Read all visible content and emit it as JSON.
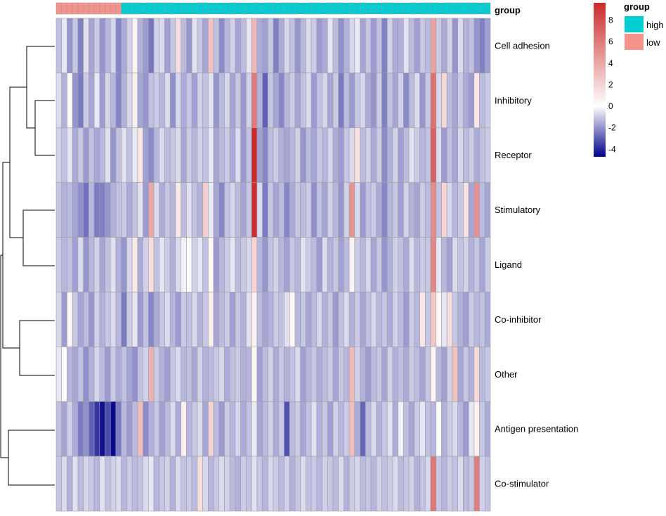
{
  "chart_data": {
    "type": "heatmap",
    "annotation_title": "group",
    "legend": {
      "title": "group",
      "items": [
        {
          "label": "high",
          "color": "#00CED1"
        },
        {
          "label": "low",
          "color": "#F4928C"
        }
      ]
    },
    "color_scale": {
      "low_color": "#00008B",
      "mid_color": "#FFFFFF",
      "high_color": "#CC2A2A",
      "min": -4.7,
      "max": 9.6,
      "ticks": [
        8,
        6,
        4,
        2,
        0,
        -2,
        -4
      ]
    },
    "rows": [
      "Cell adhesion",
      "Inhibitory",
      "Receptor",
      "Stimulatory",
      "Ligand",
      "Co-inhibitor",
      "Other",
      "Antigen presentation",
      "Co-stimulator"
    ],
    "n_columns": 80,
    "column_groups": [
      "low",
      "low",
      "low",
      "low",
      "low",
      "low",
      "low",
      "low",
      "low",
      "low",
      "low",
      "low",
      "high",
      "high",
      "high",
      "high",
      "high",
      "high",
      "high",
      "high",
      "high",
      "high",
      "high",
      "high",
      "high",
      "high",
      "high",
      "high",
      "high",
      "high",
      "high",
      "high",
      "high",
      "high",
      "high",
      "high",
      "high",
      "high",
      "high",
      "high",
      "high",
      "high",
      "high",
      "high",
      "high",
      "high",
      "high",
      "high",
      "high",
      "high",
      "high",
      "high",
      "high",
      "high",
      "high",
      "high",
      "high",
      "high",
      "high",
      "high",
      "high",
      "high",
      "high",
      "high",
      "high",
      "high",
      "high",
      "high",
      "high",
      "high",
      "high",
      "high",
      "high",
      "high",
      "high",
      "high",
      "high",
      "high",
      "high",
      "high"
    ],
    "values": [
      [
        -1.1,
        -0.4,
        -1.9,
        -1.0,
        -2.3,
        -0.5,
        -1.6,
        -0.9,
        -1.9,
        -1.3,
        -0.7,
        -2.2,
        -1.5,
        -0.8,
        0.6,
        -1.4,
        -1.8,
        -2.5,
        -0.8,
        -0.6,
        -1.7,
        -1.0,
        1.5,
        -1.2,
        -1.9,
        -0.5,
        -1.0,
        -1.6,
        2.8,
        -1.1,
        -2.1,
        -1.3,
        -0.8,
        -1.6,
        -1.2,
        -0.4,
        3.3,
        -1.5,
        -1.7,
        -1.0,
        -2.3,
        -1.5,
        -0.7,
        -1.1,
        -1.9,
        -1.3,
        -0.6,
        -0.9,
        -1.8,
        -1.5,
        -0.4,
        -1.2,
        -2.0,
        -1.4,
        -0.7,
        -0.3,
        -1.6,
        -1.0,
        -1.8,
        -1.1,
        -2.3,
        -0.8,
        -1.5,
        -1.4,
        -0.5,
        -1.2,
        -1.7,
        -1.0,
        -1.2,
        4.2,
        -0.9,
        -1.5,
        -0.8,
        -1.9,
        -0.6,
        -1.4,
        -1.1,
        -1.9,
        -2.3,
        -1.7
      ],
      [
        -0.6,
        -1.4,
        0.2,
        -1.9,
        -2.4,
        -0.9,
        -1.6,
        -0.4,
        -1.8,
        -0.7,
        -1.3,
        -2.2,
        -1.4,
        -0.7,
        0.8,
        -1.6,
        -1.9,
        -1.1,
        -0.9,
        -1.3,
        -0.6,
        -2.0,
        -0.7,
        -1.5,
        -1.0,
        -1.7,
        -0.8,
        -1.1,
        -0.5,
        -1.9,
        -1.2,
        -0.7,
        -1.6,
        -1.0,
        -1.8,
        -0.8,
        6.0,
        -1.4,
        -2.9,
        -1.0,
        -1.6,
        -2.2,
        -1.3,
        -0.9,
        -1.6,
        -1.1,
        -0.6,
        -1.8,
        -1.1,
        -0.7,
        -1.6,
        -0.9,
        -2.4,
        -1.2,
        -1.8,
        -1.0,
        -0.7,
        -1.5,
        -1.9,
        -0.9,
        -2.3,
        -1.1,
        -1.6,
        -0.8,
        -2.1,
        -1.2,
        -0.6,
        -1.9,
        -1.0,
        6.5,
        -0.7,
        1.8,
        -1.2,
        -1.6,
        -0.9,
        -1.5,
        -1.8,
        1.2,
        -1.2,
        -0.9
      ],
      [
        -0.8,
        -1.1,
        -0.4,
        -1.5,
        -1.0,
        -1.8,
        -1.1,
        -1.6,
        -1.3,
        -0.5,
        -1.9,
        -1.1,
        -0.5,
        -1.1,
        -0.3,
        1.2,
        -1.7,
        -2.1,
        -1.3,
        -0.6,
        -1.2,
        -1.0,
        -0.6,
        -1.6,
        -0.9,
        -1.3,
        -0.8,
        -1.1,
        -0.4,
        -1.6,
        -1.2,
        -0.9,
        -1.5,
        -0.6,
        -1.8,
        -1.1,
        9.6,
        -1.7,
        -2.2,
        -1.2,
        -0.9,
        -1.4,
        -1.6,
        -1.3,
        -0.8,
        -1.9,
        -1.2,
        -1.6,
        -1.0,
        -1.3,
        -0.7,
        -1.5,
        -1.8,
        -1.0,
        -0.6,
        1.4,
        -1.2,
        -0.8,
        -1.5,
        -0.9,
        -2.1,
        -1.4,
        -0.8,
        -1.7,
        -1.2,
        -0.5,
        -0.9,
        -1.3,
        -1.1,
        7.2,
        -0.6,
        -1.8,
        -1.1,
        -1.6,
        -0.7,
        -1.2,
        -0.9,
        -1.5,
        -1.1,
        -0.9
      ],
      [
        -1.0,
        -1.4,
        -1.2,
        -1.6,
        -2.0,
        -2.6,
        -1.3,
        -2.4,
        -2.3,
        -1.9,
        -1.4,
        -1.1,
        -0.9,
        -1.5,
        -1.1,
        -0.5,
        -1.8,
        3.9,
        -0.6,
        -1.5,
        -1.0,
        -1.3,
        1.0,
        -1.2,
        -0.5,
        -1.1,
        -1.4,
        2.3,
        -0.3,
        -1.6,
        -2.2,
        -1.1,
        -0.7,
        -1.2,
        -1.6,
        -1.0,
        9.4,
        -0.6,
        -2.4,
        -1.0,
        -1.6,
        -1.2,
        -2.2,
        -1.5,
        -1.0,
        -1.2,
        -0.9,
        -2.0,
        -1.1,
        -1.6,
        -0.8,
        -1.3,
        -1.9,
        -0.8,
        4.8,
        -0.6,
        -1.8,
        -1.1,
        -0.9,
        -1.5,
        -2.2,
        -1.3,
        -1.0,
        -1.7,
        -0.8,
        -1.4,
        -1.6,
        -0.9,
        -1.2,
        5.2,
        -1.1,
        2.0,
        -0.7,
        -1.3,
        -1.0,
        1.4,
        -1.6,
        5.0,
        -1.2,
        -1.6
      ],
      [
        -0.9,
        -1.3,
        -1.1,
        -1.7,
        -0.6,
        -1.9,
        -1.3,
        -0.8,
        -1.6,
        -1.1,
        -0.5,
        -1.4,
        -1.9,
        -0.7,
        1.0,
        -1.5,
        -0.8,
        1.6,
        -1.1,
        -0.4,
        -0.9,
        -1.4,
        -0.6,
        -0.2,
        0.2,
        -0.8,
        -0.4,
        -1.1,
        0.4,
        -1.8,
        -1.3,
        -0.9,
        -0.4,
        -1.2,
        -1.0,
        -0.7,
        2.0,
        -1.3,
        -1.9,
        -1.1,
        -0.8,
        -1.3,
        -1.7,
        -1.0,
        -1.3,
        -0.5,
        -0.9,
        -1.2,
        -1.8,
        -0.6,
        -1.4,
        -1.0,
        -1.7,
        -1.2,
        0.6,
        -0.9,
        -1.3,
        -0.7,
        -1.6,
        -1.0,
        -1.9,
        -1.4,
        -0.8,
        -1.1,
        -1.5,
        -0.6,
        -1.3,
        -0.9,
        -1.0,
        5.5,
        -0.4,
        -1.3,
        -1.7,
        -0.6,
        -1.1,
        -0.8,
        -1.4,
        -1.0,
        -1.6,
        -0.9
      ],
      [
        -0.7,
        -1.8,
        0.4,
        -1.0,
        -1.6,
        -1.2,
        -1.9,
        -0.8,
        -1.4,
        -1.0,
        -0.6,
        -1.3,
        -2.4,
        -0.9,
        -0.4,
        -1.8,
        -1.1,
        -2.2,
        -1.5,
        -1.0,
        -0.6,
        -1.3,
        -1.8,
        -0.9,
        -1.1,
        -0.7,
        -1.4,
        -1.0,
        0.8,
        -1.6,
        -1.2,
        -0.9,
        -1.7,
        -1.0,
        -1.4,
        -0.5,
        0.6,
        -1.2,
        -1.6,
        -1.4,
        -0.9,
        -1.1,
        -0.5,
        0.4,
        -1.3,
        -1.0,
        -1.6,
        -1.2,
        -0.7,
        -1.4,
        -1.0,
        -1.8,
        -1.1,
        -0.6,
        -1.4,
        -0.9,
        -1.6,
        -1.1,
        -0.7,
        -1.3,
        -1.0,
        -1.5,
        -0.8,
        -1.2,
        -1.8,
        -0.9,
        -1.3,
        1.2,
        -1.0,
        2.6,
        0.4,
        -0.4,
        1.6,
        -1.0,
        -1.4,
        -1.7,
        -0.9,
        -1.3,
        -1.1,
        -1.5
      ],
      [
        -0.4,
        0.2,
        -1.3,
        -1.6,
        -1.1,
        -2.0,
        -1.4,
        -0.7,
        -1.2,
        -1.8,
        -0.9,
        -1.5,
        -1.1,
        -1.6,
        -2.0,
        -1.1,
        -0.8,
        3.5,
        -0.9,
        -1.4,
        -1.7,
        -1.0,
        -0.6,
        -1.3,
        -1.1,
        -1.6,
        -0.8,
        -1.4,
        -1.2,
        -1.0,
        -0.7,
        -1.5,
        -1.1,
        -0.9,
        -1.4,
        -1.3,
        0.4,
        -1.7,
        -1.2,
        -0.8,
        -1.5,
        -1.0,
        -1.4,
        -1.1,
        -0.6,
        -1.7,
        -1.3,
        -1.0,
        -1.5,
        -1.2,
        -0.9,
        -1.6,
        -1.0,
        -1.3,
        3.2,
        -0.8,
        -1.4,
        -1.8,
        -1.2,
        -1.0,
        -1.6,
        -0.8,
        -1.4,
        -1.1,
        -1.5,
        -0.9,
        -1.2,
        -1.6,
        -1.0,
        0.6,
        -1.3,
        -1.7,
        -0.8,
        2.8,
        -1.6,
        -1.0,
        -1.4,
        1.8,
        -1.2,
        -1.0
      ],
      [
        -1.1,
        -1.6,
        -0.8,
        -1.5,
        -2.4,
        -2.0,
        -2.9,
        -3.7,
        -4.4,
        -3.3,
        -4.5,
        -2.4,
        -1.3,
        -1.8,
        -1.2,
        3.0,
        -2.1,
        -1.4,
        -1.0,
        -1.7,
        -1.2,
        -0.6,
        -1.5,
        0.8,
        -1.3,
        -1.0,
        -0.6,
        -1.6,
        2.0,
        -1.2,
        -1.8,
        -0.9,
        -1.3,
        -0.7,
        -1.5,
        -1.1,
        -0.3,
        -1.6,
        -1.2,
        -0.8,
        -1.5,
        -1.0,
        -3.2,
        -1.2,
        -0.9,
        -1.6,
        -1.1,
        -0.5,
        -1.4,
        -1.0,
        -1.7,
        -0.8,
        -1.3,
        -0.9,
        3.0,
        -1.5,
        -2.8,
        -1.2,
        -0.6,
        -1.4,
        -1.0,
        -0.5,
        -1.5,
        -0.2,
        -1.1,
        -1.6,
        -0.9,
        -0.4,
        -1.1,
        -1.3,
        0.2,
        -1.4,
        -0.9,
        -0.6,
        -1.3,
        -1.8,
        -0.4,
        0.8,
        -1.0,
        -1.5
      ],
      [
        -1.0,
        -0.6,
        -1.4,
        -0.5,
        -1.2,
        -0.7,
        -1.0,
        -1.3,
        -0.5,
        -1.1,
        -0.8,
        -0.6,
        -1.3,
        -0.9,
        -1.2,
        -1.1,
        -0.6,
        -0.4,
        -1.3,
        -1.0,
        -0.8,
        -1.4,
        -0.6,
        -1.1,
        -0.9,
        -1.2,
        1.5,
        -0.7,
        -1.3,
        -1.0,
        -0.6,
        -0.8,
        -1.2,
        -1.4,
        -0.9,
        -1.1,
        -0.5,
        -1.0,
        -1.3,
        -0.7,
        -0.9,
        -1.2,
        -0.8,
        -1.4,
        -1.0,
        -0.6,
        -1.1,
        -0.9,
        -1.3,
        -0.8,
        -1.0,
        -1.2,
        -0.6,
        -1.4,
        -0.9,
        -0.7,
        -1.2,
        -1.0,
        -1.3,
        -0.8,
        -1.1,
        -0.9,
        -0.6,
        -1.2,
        -1.0,
        -0.8,
        -1.4,
        -1.1,
        -0.7,
        6.2,
        -1.0,
        -1.3,
        -0.9,
        -1.1,
        -0.6,
        -1.2,
        -1.0,
        5.8,
        -0.8,
        -1.1
      ]
    ]
  }
}
